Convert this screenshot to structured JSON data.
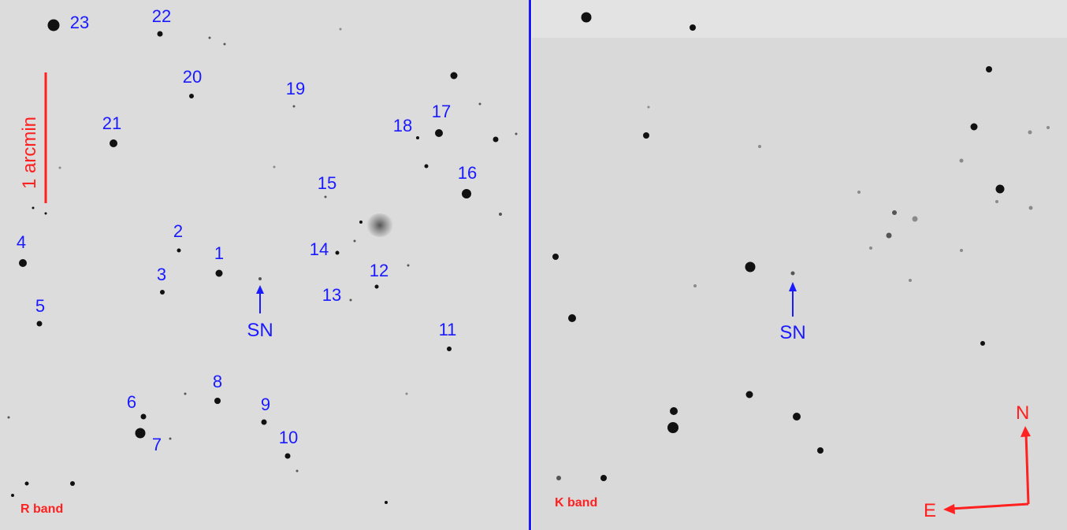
{
  "panels": {
    "left": {
      "band_label": "R band",
      "scale_label": "1 arcmin"
    },
    "right": {
      "band_label": "K band"
    }
  },
  "supernova_label": "SN",
  "compass": {
    "north": "N",
    "east": "E"
  },
  "star_labels": [
    "1",
    "2",
    "3",
    "4",
    "5",
    "6",
    "7",
    "8",
    "9",
    "10",
    "11",
    "12",
    "13",
    "14",
    "15",
    "16",
    "17",
    "18",
    "19",
    "20",
    "21",
    "22",
    "23"
  ],
  "colors": {
    "labels": "#1a1aff",
    "annotations": "#ff2020",
    "divider": "#1a1aff"
  }
}
